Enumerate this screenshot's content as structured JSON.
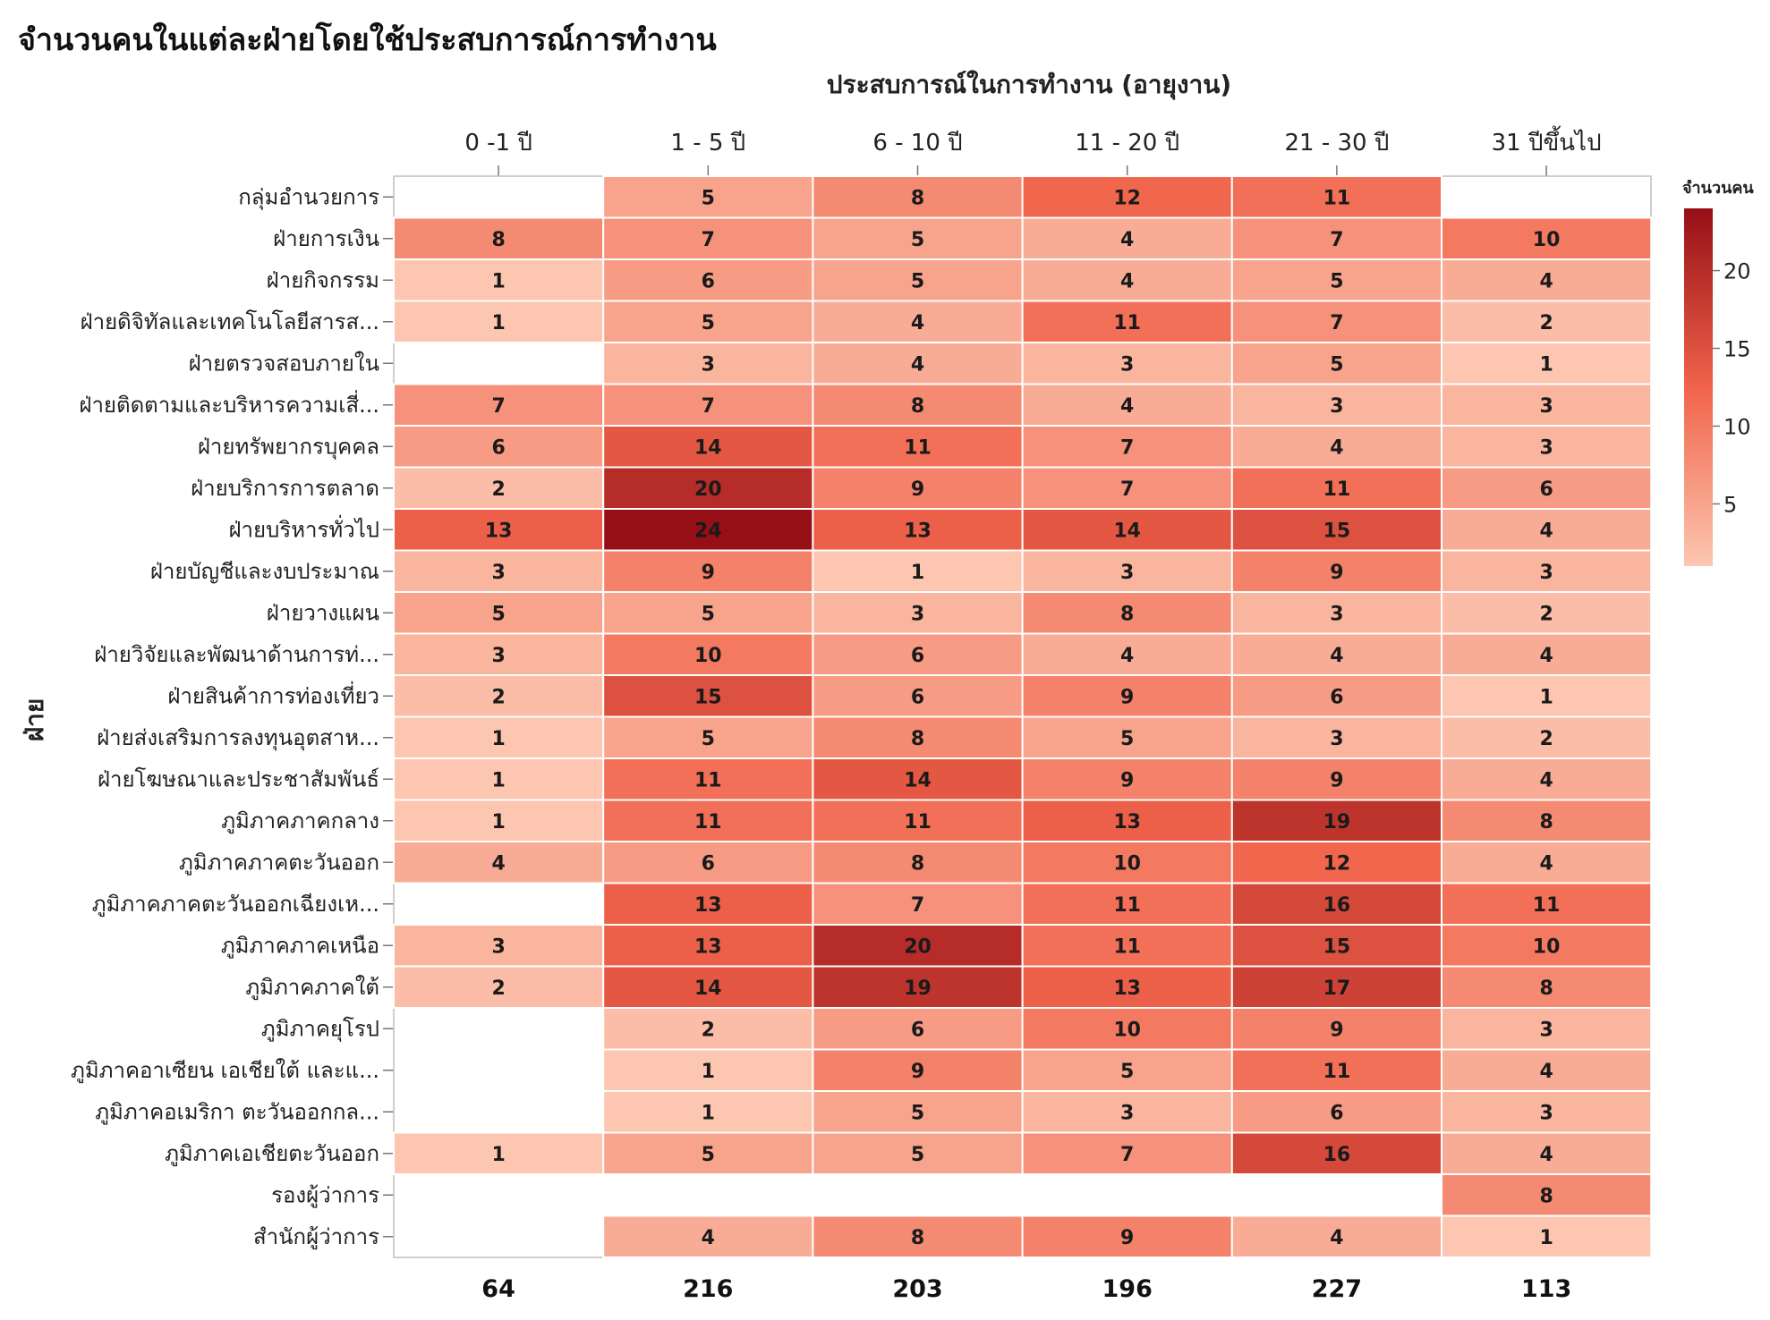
{
  "chart_data": {
    "type": "heatmap",
    "title": "จำนวนคนในแต่ละฝ่ายโดยใช้ประสบการณ์การทำงาน",
    "xlabel": "ประสบการณ์ในการทำงาน (อายุงาน)",
    "ylabel": "ฝ่าย",
    "columns": [
      "0 -1 ปี",
      "1 - 5 ปี",
      "6 - 10 ปี",
      "11 - 20 ปี",
      "21 - 30 ปี",
      "31 ปีขึ้นไป"
    ],
    "rows": [
      "กลุ่มอำนวยการ",
      "ฝ่ายการเงิน",
      "ฝ่ายกิจกรรม",
      "ฝ่ายดิจิทัลและเทคโนโลยีสารส...",
      "ฝ่ายตรวจสอบภายใน",
      "ฝ่ายติดตามและบริหารความเสี่...",
      "ฝ่ายทรัพยากรบุคคล",
      "ฝ่ายบริการการตลาด",
      "ฝ่ายบริหารทั่วไป",
      "ฝ่ายบัญชีและงบประมาณ",
      "ฝ่ายวางแผน",
      "ฝ่ายวิจัยและพัฒนาด้านการท่...",
      "ฝ่ายสินค้าการท่องเที่ยว",
      "ฝ่ายส่งเสริมการลงทุนอุตสาห...",
      "ฝ่ายโฆษณาและประชาสัมพันธ์",
      "ภูมิภาคภาคกลาง",
      "ภูมิภาคภาคตะวันออก",
      "ภูมิภาคภาคตะวันออกเฉียงเห...",
      "ภูมิภาคภาคเหนือ",
      "ภูมิภาคภาคใต้",
      "ภูมิภาคยุโรป",
      "ภูมิภาคอาเซียน เอเชียใต้ และแ...",
      "ภูมิภาคอเมริกา ตะวันออกกล...",
      "ภูมิภาคเอเชียตะวันออก",
      "รองผู้ว่าการ",
      "สำนักผู้ว่าการ"
    ],
    "values": [
      [
        null,
        5,
        8,
        12,
        11,
        null
      ],
      [
        8,
        7,
        5,
        4,
        7,
        10
      ],
      [
        1,
        6,
        5,
        4,
        5,
        4
      ],
      [
        1,
        5,
        4,
        11,
        7,
        2
      ],
      [
        null,
        3,
        4,
        3,
        5,
        1
      ],
      [
        7,
        7,
        8,
        4,
        3,
        3
      ],
      [
        6,
        14,
        11,
        7,
        4,
        3
      ],
      [
        2,
        20,
        9,
        7,
        11,
        6
      ],
      [
        13,
        24,
        13,
        14,
        15,
        4
      ],
      [
        3,
        9,
        1,
        3,
        9,
        3
      ],
      [
        5,
        5,
        3,
        8,
        3,
        2
      ],
      [
        3,
        10,
        6,
        4,
        4,
        4
      ],
      [
        2,
        15,
        6,
        9,
        6,
        1
      ],
      [
        1,
        5,
        8,
        5,
        3,
        2
      ],
      [
        1,
        11,
        14,
        9,
        9,
        4
      ],
      [
        1,
        11,
        11,
        13,
        19,
        8
      ],
      [
        4,
        6,
        8,
        10,
        12,
        4
      ],
      [
        null,
        13,
        7,
        11,
        16,
        11
      ],
      [
        3,
        13,
        20,
        11,
        15,
        10
      ],
      [
        2,
        14,
        19,
        13,
        17,
        8
      ],
      [
        null,
        2,
        6,
        10,
        9,
        3
      ],
      [
        null,
        1,
        9,
        5,
        11,
        4
      ],
      [
        null,
        1,
        5,
        3,
        6,
        3
      ],
      [
        1,
        5,
        5,
        7,
        16,
        4
      ],
      [
        null,
        null,
        null,
        null,
        null,
        8
      ],
      [
        null,
        4,
        8,
        9,
        4,
        1
      ]
    ],
    "totals": [
      64,
      216,
      203,
      196,
      227,
      113
    ],
    "legend": {
      "title": "จำนวนคน",
      "placement": "right",
      "min": 1,
      "max": 24,
      "ticks": [
        5,
        10,
        15,
        20
      ],
      "color_low": "#fcc6b0",
      "color_mid": "#f0634a",
      "color_high": "#960f16"
    },
    "grid": false
  }
}
